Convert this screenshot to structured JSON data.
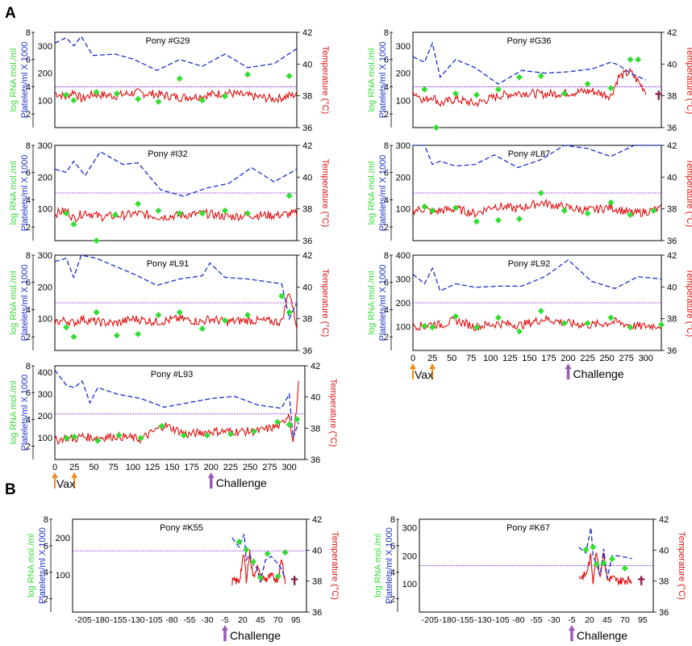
{
  "figure": {
    "panel_labels": [
      "A",
      "B"
    ],
    "colors": {
      "rna": "#33dd33",
      "platelets": "#1a2ecc",
      "temperature": "#dd1111",
      "threshold": "#8a2be2",
      "vax_arrow": "#f08c1a",
      "challenge_arrow": "#9b59b6",
      "death_mark": "#8b1a4a"
    },
    "axis_labels": {
      "rna": "log RNA mol./ml",
      "platelets": "Platelets/ml X 1000",
      "temperature": "Temperature (°C)"
    },
    "annotations": {
      "vax": "Vax",
      "challenge": "Challenge",
      "death_symbol": "✝"
    }
  },
  "chart_data": [
    {
      "type": "line",
      "title": "Pony #G29",
      "x": [
        0,
        15,
        25,
        35,
        50,
        80,
        105,
        135,
        165,
        195,
        225,
        255,
        290,
        320
      ],
      "series": [
        {
          "name": "platelets",
          "values": [
            310,
            330,
            300,
            335,
            265,
            270,
            250,
            210,
            250,
            225,
            270,
            220,
            235,
            290
          ]
        },
        {
          "name": "temperature",
          "values": [
            38.2,
            37.9,
            38.3,
            37.8,
            38.1,
            38.0,
            38.2,
            38.1,
            37.9,
            38.0,
            38.2,
            38.0,
            37.8,
            38.1
          ]
        },
        {
          "name": "rna",
          "x": [
            15,
            25,
            55,
            82,
            110,
            137,
            165,
            195,
            225,
            255,
            310
          ],
          "values": [
            3.4,
            3.0,
            3.6,
            3.5,
            3.1,
            2.9,
            4.6,
            3.0,
            3.3,
            4.9,
            4.8
          ]
        }
      ],
      "threshold_platelets": 150,
      "ylim_rna": [
        1,
        8
      ],
      "ylim_platelets": [
        0,
        350
      ],
      "ylim_temp": [
        36,
        42
      ]
    },
    {
      "type": "line",
      "title": "Pony #G36",
      "x": [
        0,
        15,
        25,
        35,
        55,
        80,
        110,
        140,
        170,
        200,
        230,
        255,
        265,
        280,
        300
      ],
      "series": [
        {
          "name": "platelets",
          "values": [
            260,
            240,
            310,
            185,
            250,
            220,
            160,
            210,
            200,
            205,
            215,
            240,
            230,
            200,
            175
          ]
        },
        {
          "name": "temperature",
          "values": [
            38.3,
            37.7,
            38.0,
            37.5,
            37.8,
            37.5,
            38.0,
            38.2,
            38.1,
            38.2,
            38.3,
            38.0,
            39.2,
            39.5,
            38.3
          ]
        },
        {
          "name": "rna",
          "x": [
            15,
            30,
            55,
            82,
            110,
            137,
            165,
            195,
            225,
            255,
            280,
            290
          ],
          "values": [
            3.8,
            1.0,
            3.5,
            3.4,
            3.8,
            4.7,
            4.8,
            3.5,
            4.2,
            3.9,
            6.0,
            6.0
          ]
        }
      ],
      "threshold_platelets": 150,
      "ylim_rna": [
        1,
        8
      ],
      "ylim_platelets": [
        0,
        350
      ],
      "ylim_temp": [
        36,
        42
      ]
    },
    {
      "type": "line",
      "title": "Pony #I32",
      "x": [
        0,
        15,
        25,
        40,
        60,
        90,
        110,
        140,
        170,
        200,
        230,
        260,
        290,
        320
      ],
      "series": [
        {
          "name": "platelets",
          "values": [
            225,
            215,
            250,
            205,
            280,
            240,
            245,
            160,
            140,
            165,
            180,
            230,
            185,
            225
          ]
        },
        {
          "name": "temperature",
          "values": [
            37.7,
            37.9,
            37.4,
            37.8,
            37.5,
            37.6,
            37.7,
            37.5,
            37.6,
            37.7,
            37.5,
            37.6,
            37.6,
            37.7
          ]
        },
        {
          "name": "rna",
          "x": [
            15,
            25,
            55,
            80,
            110,
            137,
            165,
            195,
            225,
            255,
            310
          ],
          "values": [
            3.0,
            2.2,
            1.0,
            2.9,
            3.7,
            3.2,
            3.0,
            3.0,
            3.2,
            3.0,
            4.3
          ]
        }
      ],
      "threshold_platelets": 150,
      "ylim_rna": [
        1,
        8
      ],
      "ylim_platelets": [
        0,
        300
      ],
      "ylim_temp": [
        36,
        42
      ]
    },
    {
      "type": "line",
      "title": "Pony #L87",
      "x": [
        0,
        15,
        25,
        35,
        55,
        80,
        105,
        135,
        165,
        195,
        225,
        255,
        285,
        320
      ],
      "series": [
        {
          "name": "platelets",
          "values": [
            310,
            310,
            240,
            250,
            235,
            240,
            270,
            230,
            255,
            300,
            290,
            265,
            310,
            310
          ]
        },
        {
          "name": "temperature",
          "values": [
            37.9,
            38.0,
            37.8,
            37.9,
            38.0,
            37.7,
            38.2,
            38.0,
            38.4,
            38.1,
            37.9,
            38.1,
            37.7,
            38.0
          ]
        },
        {
          "name": "rna",
          "x": [
            15,
            25,
            55,
            82,
            110,
            137,
            165,
            195,
            225,
            255,
            280,
            310
          ],
          "values": [
            3.5,
            3.2,
            3.4,
            2.4,
            2.5,
            2.6,
            4.5,
            3.2,
            3.0,
            3.8,
            2.9,
            3.2
          ]
        }
      ],
      "threshold_platelets": 150,
      "ylim_rna": [
        1,
        8
      ],
      "ylim_platelets": [
        0,
        300
      ],
      "ylim_temp": [
        36,
        42
      ]
    },
    {
      "type": "line",
      "title": "Pony #L91",
      "x": [
        0,
        15,
        25,
        35,
        55,
        80,
        105,
        135,
        165,
        195,
        205,
        225,
        255,
        300,
        310,
        320
      ],
      "series": [
        {
          "name": "platelets",
          "values": [
            280,
            290,
            230,
            300,
            290,
            265,
            240,
            205,
            225,
            235,
            275,
            230,
            225,
            210,
            100,
            150
          ]
        },
        {
          "name": "temperature",
          "values": [
            37.8,
            37.9,
            37.7,
            38.0,
            37.8,
            37.7,
            38.0,
            37.8,
            38.0,
            37.8,
            38.0,
            37.8,
            37.9,
            37.8,
            39.8,
            37.5
          ]
        },
        {
          "name": "rna",
          "x": [
            15,
            25,
            55,
            82,
            110,
            137,
            165,
            195,
            225,
            255,
            300,
            310
          ],
          "values": [
            2.7,
            2.0,
            3.8,
            2.1,
            2.2,
            3.6,
            3.8,
            2.6,
            3.2,
            3.6,
            5.0,
            3.8
          ]
        }
      ],
      "threshold_platelets": 150,
      "ylim_rna": [
        1,
        8
      ],
      "ylim_platelets": [
        0,
        300
      ],
      "ylim_temp": [
        36,
        42
      ]
    },
    {
      "type": "line",
      "title": "Pony #L92",
      "x": [
        0,
        15,
        25,
        35,
        55,
        80,
        110,
        140,
        170,
        200,
        230,
        260,
        290,
        320
      ],
      "series": [
        {
          "name": "platelets",
          "values": [
            320,
            280,
            345,
            250,
            280,
            265,
            270,
            270,
            310,
            380,
            290,
            260,
            310,
            300
          ]
        },
        {
          "name": "temperature",
          "values": [
            37.6,
            37.5,
            37.7,
            37.6,
            37.9,
            37.5,
            37.7,
            37.6,
            38.0,
            37.7,
            37.6,
            37.8,
            37.5,
            37.6
          ]
        },
        {
          "name": "rna",
          "x": [
            15,
            25,
            55,
            82,
            110,
            137,
            165,
            195,
            225,
            255,
            280,
            320
          ],
          "values": [
            2.8,
            2.7,
            3.5,
            2.7,
            3.4,
            2.4,
            3.9,
            3.0,
            3.0,
            3.4,
            2.7,
            2.9
          ]
        }
      ],
      "threshold_platelets": 200,
      "ylim_rna": [
        1,
        8
      ],
      "ylim_platelets": [
        0,
        400
      ],
      "ylim_temp": [
        36,
        42
      ]
    },
    {
      "type": "line",
      "title": "Pony #L93",
      "x": [
        0,
        15,
        25,
        35,
        45,
        55,
        80,
        110,
        140,
        170,
        200,
        230,
        260,
        290,
        300,
        305,
        312
      ],
      "series": [
        {
          "name": "platelets",
          "values": [
            410,
            340,
            330,
            360,
            260,
            330,
            300,
            280,
            240,
            260,
            280,
            290,
            250,
            235,
            300,
            100,
            170
          ]
        },
        {
          "name": "temperature",
          "values": [
            37.2,
            37.4,
            37.3,
            37.5,
            37.4,
            37.4,
            37.5,
            37.3,
            38.2,
            37.6,
            37.8,
            37.8,
            37.8,
            38.2,
            39.0,
            37.0,
            40.8
          ]
        },
        {
          "name": "rna",
          "x": [
            15,
            25,
            55,
            82,
            110,
            137,
            165,
            195,
            225,
            255,
            285,
            300,
            310
          ],
          "values": [
            2.6,
            2.7,
            2.4,
            2.8,
            2.6,
            3.5,
            2.8,
            2.8,
            2.9,
            3.1,
            3.8,
            3.6,
            4.0
          ]
        }
      ],
      "threshold_platelets": 210,
      "ylim_rna": [
        1,
        8
      ],
      "ylim_platelets": [
        0,
        430
      ],
      "ylim_temp": [
        36,
        42
      ]
    },
    {
      "type": "line",
      "title": "Pony #K55",
      "x": [
        5,
        15,
        22,
        25,
        30,
        35,
        40,
        45,
        52,
        60,
        70,
        75,
        80
      ],
      "series": [
        {
          "name": "platelets",
          "values": [
            200,
            175,
            210,
            140,
            155,
            125,
            120,
            80,
            140,
            150,
            130,
            115,
            90
          ]
        },
        {
          "name": "temperature",
          "values": [
            38.0,
            38.0,
            39.8,
            38.1,
            39.8,
            38.2,
            39.0,
            38.3,
            38.1,
            38.3,
            38.1,
            39.5,
            38.0
          ]
        },
        {
          "name": "rna",
          "x": [
            15,
            25,
            35,
            45,
            55,
            70,
            80
          ],
          "values": [
            6.3,
            5.7,
            4.8,
            3.6,
            5.4,
            3.7,
            5.5
          ]
        }
      ],
      "threshold_platelets": 165,
      "ylim_rna": [
        1,
        8
      ],
      "ylim_platelets": [
        0,
        250
      ],
      "ylim_temp": [
        36,
        42
      ]
    },
    {
      "type": "line",
      "title": "Pony #K67",
      "x": [
        5,
        15,
        22,
        25,
        30,
        35,
        40,
        45,
        52,
        60,
        80
      ],
      "series": [
        {
          "name": "platelets",
          "values": [
            230,
            210,
            300,
            200,
            170,
            130,
            225,
            120,
            200,
            200,
            190
          ]
        },
        {
          "name": "temperature",
          "values": [
            38.2,
            38.4,
            39.6,
            38.0,
            40.0,
            38.3,
            39.8,
            38.1,
            38.2,
            38.0,
            38.1
          ]
        },
        {
          "name": "rna",
          "x": [
            15,
            25,
            30,
            40,
            52,
            70
          ],
          "values": [
            5.7,
            5.9,
            4.6,
            4.7,
            5.0,
            4.3
          ]
        }
      ],
      "threshold_platelets": 165,
      "ylim_rna": [
        1,
        8
      ],
      "ylim_platelets": [
        0,
        330
      ],
      "ylim_temp": [
        36,
        42
      ]
    }
  ],
  "panelA_xticks": [
    "0",
    "25",
    "50",
    "75",
    "100",
    "125",
    "150",
    "175",
    "200",
    "225",
    "250",
    "275",
    "300"
  ],
  "panelB_xticks": [
    "-205",
    "-180",
    "-155",
    "-130",
    "-105",
    "-80",
    "-55",
    "-30",
    "-5",
    "20",
    "45",
    "70",
    "95"
  ]
}
